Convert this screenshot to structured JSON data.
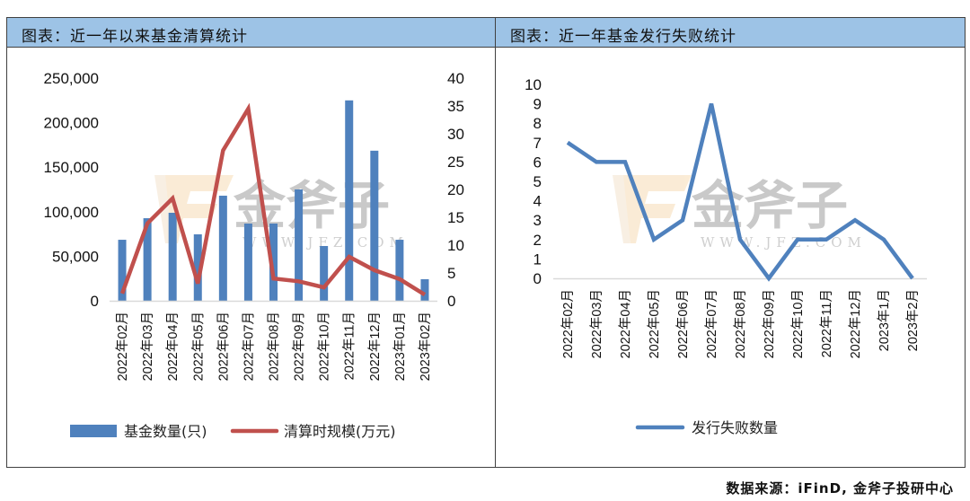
{
  "left_panel": {
    "title": "图表：近一年以来基金清算统计",
    "legend": [
      {
        "label": "基金数量(只)",
        "type": "bar",
        "color": "#4f81bd"
      },
      {
        "label": "清算时规模(万元)",
        "type": "line",
        "color": "#c0504d"
      }
    ],
    "y_left_ticks": [
      "250,000",
      "200,000",
      "150,000",
      "100,000",
      "50,000",
      "0"
    ],
    "y_right_ticks": [
      "40",
      "35",
      "30",
      "25",
      "20",
      "15",
      "10",
      "5",
      "0"
    ]
  },
  "right_panel": {
    "title": "图表：近一年基金发行失败统计",
    "legend": [
      {
        "label": "发行失败数量",
        "type": "line",
        "color": "#4f81bd"
      }
    ],
    "y_ticks": [
      "10",
      "9",
      "8",
      "7",
      "6",
      "5",
      "4",
      "3",
      "2",
      "1",
      "0"
    ]
  },
  "watermark": {
    "brand": "金斧子",
    "url": "WWW.JFZ.COM"
  },
  "footer": {
    "source": "数据来源：iFinD, 金斧子投研中心"
  },
  "colors": {
    "header_bg": "#9dc3e6",
    "bar": "#4f81bd",
    "line_red": "#c0504d",
    "line_blue": "#4f81bd"
  },
  "chart_data": [
    {
      "type": "bar",
      "title": "图表：近一年以来基金清算统计",
      "categories": [
        "2022年02月",
        "2022年03月",
        "2022年04月",
        "2022年05月",
        "2022年06月",
        "2022年07月",
        "2022年08月",
        "2022年09月",
        "2022年10月",
        "2022年11月",
        "2022年12月",
        "2023年01月",
        "2023年02月"
      ],
      "series": [
        {
          "name": "基金数量(只)",
          "type": "bar",
          "axis": "left",
          "values": [
            68500,
            92700,
            98800,
            74600,
            118000,
            86700,
            86700,
            125000,
            61500,
            225000,
            168500,
            68500,
            24200
          ]
        },
        {
          "name": "清算时规模(万元)",
          "type": "line",
          "axis": "right",
          "values": [
            1.3,
            13.9,
            18.4,
            3.1,
            27.0,
            34.5,
            4.0,
            3.5,
            2.4,
            7.9,
            5.5,
            3.9,
            1.1
          ]
        }
      ],
      "xlabel": "",
      "ylabel": "",
      "ylim": [
        0,
        250000
      ],
      "y2lim": [
        0,
        40
      ],
      "grid": false,
      "legend_position": "bottom"
    },
    {
      "type": "line",
      "title": "图表：近一年基金发行失败统计",
      "categories": [
        "2022年02月",
        "2022年03月",
        "2022年04月",
        "2022年05月",
        "2022年06月",
        "2022年07月",
        "2022年08月",
        "2022年09月",
        "2022年10月",
        "2022年11月",
        "2022年12月",
        "2023年1月",
        "2023年2月"
      ],
      "series": [
        {
          "name": "发行失败数量",
          "values": [
            7,
            6,
            6,
            2,
            3,
            9,
            2,
            0,
            2,
            2,
            3,
            2,
            0
          ]
        }
      ],
      "xlabel": "",
      "ylabel": "",
      "ylim": [
        0,
        10
      ],
      "grid": false,
      "legend_position": "bottom"
    }
  ]
}
